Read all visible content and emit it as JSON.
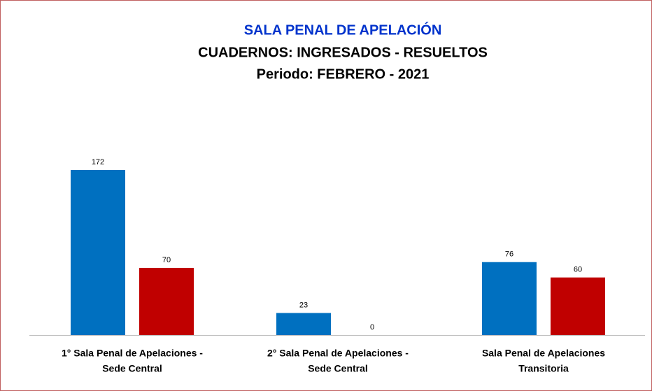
{
  "chart_data": {
    "type": "bar",
    "title": "SALA PENAL DE APELACIÓN",
    "subtitle": [
      "CUADERNOS: INGRESADOS - RESUELTOS",
      "Periodo:  FEBRERO - 2021"
    ],
    "categories": [
      [
        "1° Sala Penal de Apelaciones -",
        "Sede Central"
      ],
      [
        "2° Sala Penal de Apelaciones -",
        "Sede Central"
      ],
      [
        "Sala Penal de Apelaciones",
        "Transitoria"
      ]
    ],
    "series": [
      {
        "color": "#0070c0",
        "values": [
          172,
          23,
          76
        ]
      },
      {
        "color": "#c00000",
        "values": [
          70,
          0,
          60
        ]
      }
    ]
  }
}
